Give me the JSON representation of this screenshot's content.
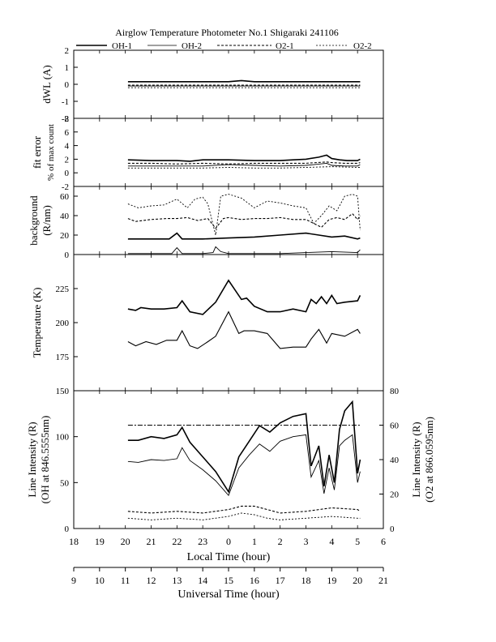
{
  "title": "Airglow Temperature Photometer No.1 Shigaraki 241106",
  "legend": [
    "OH-1",
    "OH-2",
    "O2-1",
    "O2-2"
  ],
  "colors": {
    "ink": "#000000",
    "background": "#ffffff"
  },
  "chart_data": [
    {
      "type": "line",
      "panel": "dwl",
      "ylabel": "dWL (A)",
      "ylim": [
        -2,
        2
      ],
      "yticks": [
        "-2",
        "-1",
        "0",
        "1",
        "2"
      ],
      "series": [
        {
          "name": "OH-1",
          "x": [
            20.1,
            20.5,
            21,
            22,
            23,
            24,
            24.5,
            25,
            26,
            27,
            28,
            29,
            29.1
          ],
          "values": [
            0.15,
            0.15,
            0.15,
            0.15,
            0.15,
            0.15,
            0.22,
            0.15,
            0.15,
            0.15,
            0.15,
            0.15,
            0.15
          ]
        },
        {
          "name": "OH-2",
          "x": [
            20.1,
            21,
            22,
            23,
            24,
            25,
            26,
            27,
            28,
            29,
            29.1
          ],
          "values": [
            -0.1,
            -0.1,
            -0.1,
            -0.1,
            -0.1,
            -0.1,
            -0.1,
            -0.1,
            -0.1,
            -0.1,
            -0.1
          ]
        },
        {
          "name": "O2-1",
          "x": [
            20.1,
            21,
            22,
            23,
            24,
            25,
            26,
            27,
            28,
            29,
            29.1
          ],
          "values": [
            -0.05,
            -0.05,
            -0.05,
            -0.05,
            -0.05,
            -0.05,
            -0.05,
            -0.05,
            -0.05,
            -0.05,
            -0.05
          ]
        },
        {
          "name": "O2-2",
          "x": [
            20.1,
            21,
            22,
            23,
            24,
            25,
            26,
            27,
            28,
            29,
            29.1
          ],
          "values": [
            -0.2,
            -0.2,
            -0.2,
            -0.2,
            -0.2,
            -0.2,
            -0.2,
            -0.2,
            -0.2,
            -0.2,
            -0.2
          ]
        }
      ]
    },
    {
      "type": "line",
      "panel": "fit_error",
      "ylabel": "fit error",
      "ylabel2": "% of max count",
      "ylim": [
        -2,
        8
      ],
      "yticks": [
        "-2",
        "0",
        "2",
        "4",
        "6",
        "8"
      ],
      "series": [
        {
          "name": "OH-1",
          "x": [
            20.1,
            21,
            22,
            22.5,
            23,
            24,
            25,
            26,
            26.5,
            27,
            27.5,
            27.8,
            28,
            28.3,
            28.6,
            29,
            29.1
          ],
          "values": [
            1.9,
            1.8,
            1.8,
            1.7,
            1.9,
            1.9,
            1.8,
            1.8,
            1.9,
            2.0,
            2.3,
            2.6,
            2.1,
            1.9,
            1.8,
            1.8,
            2.0
          ]
        },
        {
          "name": "OH-2",
          "x": [
            20.1,
            21,
            22,
            23,
            24,
            25,
            26,
            27,
            27.8,
            28,
            28.5,
            29,
            29.1
          ],
          "values": [
            1.0,
            1.0,
            1.0,
            1.0,
            1.2,
            1.1,
            1.0,
            1.1,
            1.4,
            1.1,
            1.0,
            1.0,
            1.2
          ]
        },
        {
          "name": "O2-1",
          "x": [
            20.1,
            21,
            22,
            23,
            24,
            25,
            26,
            27,
            27.8,
            28,
            28.5,
            29,
            29.1
          ],
          "values": [
            1.4,
            1.4,
            1.3,
            1.4,
            1.3,
            1.4,
            1.4,
            1.4,
            1.6,
            1.5,
            1.4,
            1.4,
            1.5
          ]
        },
        {
          "name": "O2-2",
          "x": [
            20.1,
            21,
            22,
            23,
            24,
            25,
            26,
            27,
            28,
            29,
            29.1
          ],
          "values": [
            0.7,
            0.7,
            0.7,
            0.7,
            0.8,
            0.7,
            0.7,
            0.8,
            0.9,
            0.8,
            0.8
          ]
        }
      ]
    },
    {
      "type": "line",
      "panel": "background",
      "ylabel": "background",
      "ylabel2": "(R/nm)",
      "ylim": [
        0,
        70
      ],
      "yticks": [
        "0",
        "20",
        "40",
        "60"
      ],
      "series": [
        {
          "name": "OH-1",
          "x": [
            20.1,
            21,
            21.7,
            22,
            22.2,
            23,
            24,
            25,
            26,
            27,
            27.5,
            28,
            28.5,
            29,
            29.1
          ],
          "values": [
            16,
            16,
            16,
            22,
            16,
            16,
            17,
            18,
            20,
            22,
            20,
            18,
            19,
            16,
            17
          ]
        },
        {
          "name": "OH-2",
          "x": [
            20.1,
            21,
            21.8,
            22,
            22.2,
            23,
            23.4,
            23.5,
            23.7,
            24,
            25,
            26,
            27,
            28,
            29,
            29.1
          ],
          "values": [
            1,
            1,
            1,
            7,
            1,
            1,
            2,
            8,
            3,
            1,
            1,
            1,
            2,
            3,
            2,
            5
          ]
        },
        {
          "name": "O2-1",
          "x": [
            20.1,
            20.4,
            21,
            21.6,
            22,
            22.4,
            22.8,
            23.2,
            23.5,
            23.8,
            24,
            24.5,
            25,
            25.5,
            26,
            26.5,
            27,
            27.3,
            27.6,
            27.9,
            28.2,
            28.5,
            28.8,
            29,
            29.1
          ],
          "values": [
            37,
            34,
            36,
            37,
            37,
            38,
            35,
            37,
            27,
            37,
            38,
            36,
            37,
            37,
            38,
            36,
            36,
            32,
            28,
            36,
            38,
            36,
            42,
            36,
            40
          ]
        },
        {
          "name": "O2-2",
          "x": [
            20.1,
            20.5,
            21,
            21.5,
            22,
            22.4,
            22.7,
            23,
            23.2,
            23.5,
            23.7,
            24,
            24.5,
            25,
            25.5,
            26,
            26.5,
            27,
            27.3,
            27.6,
            27.9,
            28.2,
            28.5,
            28.8,
            29,
            29.1
          ],
          "values": [
            52,
            48,
            50,
            51,
            57,
            48,
            57,
            59,
            52,
            20,
            60,
            62,
            58,
            48,
            55,
            53,
            50,
            48,
            32,
            40,
            50,
            45,
            60,
            62,
            60,
            25
          ]
        }
      ]
    },
    {
      "type": "line",
      "panel": "temperature",
      "ylabel": "Temperature (K)",
      "ylim": [
        150,
        250
      ],
      "yticks": [
        "175",
        "200",
        "225"
      ],
      "series": [
        {
          "name": "OH",
          "x": [
            20.1,
            20.4,
            20.6,
            21,
            21.5,
            22,
            22.2,
            22.5,
            23,
            23.5,
            24,
            24.5,
            24.7,
            25,
            25.5,
            26,
            26.5,
            27,
            27.2,
            27.4,
            27.6,
            27.8,
            28,
            28.2,
            28.5,
            29,
            29.1
          ],
          "values": [
            210,
            209,
            211,
            210,
            210,
            211,
            216,
            208,
            206,
            215,
            231,
            217,
            218,
            212,
            208,
            208,
            210,
            208,
            217,
            214,
            219,
            214,
            220,
            214,
            215,
            216,
            220
          ]
        },
        {
          "name": "O2",
          "x": [
            20.1,
            20.4,
            20.8,
            21.2,
            21.6,
            22,
            22.2,
            22.5,
            22.8,
            23.2,
            23.5,
            24,
            24.4,
            24.6,
            25,
            25.5,
            26,
            26.5,
            27,
            27.2,
            27.5,
            27.8,
            28,
            28.5,
            29,
            29.1
          ],
          "values": [
            186,
            183,
            186,
            184,
            187,
            187,
            194,
            183,
            181,
            186,
            190,
            208,
            192,
            194,
            194,
            192,
            181,
            182,
            182,
            188,
            195,
            185,
            192,
            190,
            195,
            192
          ]
        }
      ]
    },
    {
      "type": "line",
      "panel": "intensity",
      "ylabel": "Line Intensity (R)",
      "ylabel2": "(OH at 846.5555nm)",
      "ylabel_right": "Line Intensity (R)",
      "ylabel_right2": "(O2 at 866.0595nm)",
      "ylim": [
        0,
        150
      ],
      "ylim_right": [
        0,
        80
      ],
      "yticks": [
        "0",
        "50",
        "100",
        "150"
      ],
      "yticks_right": [
        "0",
        "20",
        "40",
        "60",
        "80"
      ],
      "series": [
        {
          "name": "OH-1",
          "axis": "left",
          "x": [
            20.1,
            20.5,
            21,
            21.5,
            22,
            22.2,
            22.5,
            23,
            23.5,
            24,
            24.4,
            24.8,
            25.2,
            25.6,
            26,
            26.5,
            27,
            27.2,
            27.5,
            27.7,
            27.9,
            28.1,
            28.3,
            28.5,
            28.8,
            29,
            29.1
          ],
          "values": [
            96,
            96,
            100,
            98,
            102,
            110,
            94,
            78,
            62,
            40,
            78,
            95,
            112,
            105,
            115,
            122,
            125,
            68,
            90,
            46,
            80,
            50,
            108,
            128,
            138,
            60,
            75
          ]
        },
        {
          "name": "OH-2",
          "axis": "left",
          "x": [
            20.1,
            20.5,
            21,
            21.5,
            22,
            22.2,
            22.5,
            23,
            23.5,
            24,
            24.4,
            24.8,
            25.2,
            25.6,
            26,
            26.5,
            27,
            27.2,
            27.5,
            27.7,
            27.9,
            28.1,
            28.3,
            28.5,
            28.8,
            29,
            29.1
          ],
          "values": [
            73,
            72,
            75,
            74,
            76,
            88,
            74,
            64,
            52,
            36,
            66,
            80,
            92,
            84,
            95,
            100,
            102,
            56,
            74,
            38,
            66,
            42,
            90,
            96,
            102,
            50,
            62
          ]
        },
        {
          "name": "O2-1",
          "axis": "right",
          "x": [
            20.1,
            21,
            22,
            23,
            24,
            24.5,
            25,
            25.5,
            26,
            27,
            28,
            29,
            29.1
          ],
          "values": [
            10,
            9,
            10,
            9,
            11,
            13,
            13,
            11,
            9,
            10,
            12,
            11,
            10
          ]
        },
        {
          "name": "O2-2",
          "axis": "right",
          "x": [
            20.1,
            21,
            22,
            23,
            24,
            24.5,
            25,
            25.5,
            26,
            27,
            28,
            29,
            29.1
          ],
          "values": [
            6,
            5,
            6,
            5,
            7,
            9,
            8,
            6,
            5,
            6,
            7,
            6,
            6
          ]
        },
        {
          "name": "O2 reference",
          "axis": "right",
          "x": [
            20.1,
            29.1
          ],
          "values": [
            60,
            60
          ]
        }
      ]
    }
  ],
  "xaxis_local": {
    "label": "Local Time (hour)",
    "ticks": [
      "18",
      "19",
      "20",
      "21",
      "22",
      "23",
      "0",
      "1",
      "2",
      "3",
      "4",
      "5",
      "6"
    ]
  },
  "xaxis_ut": {
    "label": "Universal Time (hour)",
    "ticks": [
      "9",
      "10",
      "11",
      "12",
      "13",
      "14",
      "15",
      "16",
      "17",
      "18",
      "19",
      "20",
      "21"
    ]
  }
}
